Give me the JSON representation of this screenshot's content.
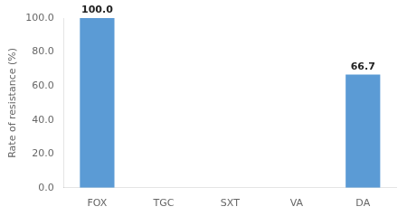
{
  "chart_data": {
    "type": "bar",
    "categories": [
      "FOX",
      "TGC",
      "SXT",
      "VA",
      "DA"
    ],
    "values": [
      100.0,
      0.0,
      0.0,
      0.0,
      66.7
    ],
    "value_labels": [
      "100.0",
      null,
      null,
      null,
      "66.7"
    ],
    "data_labels": true,
    "color": "#5B9BD5",
    "ylabel": "Rate of resistance (%)",
    "ylim": [
      0,
      100
    ],
    "yticks": [
      {
        "value": 0,
        "label": "0.0"
      },
      {
        "value": 20,
        "label": "20.0"
      },
      {
        "value": 40,
        "label": "40.0"
      },
      {
        "value": 60,
        "label": "60.0"
      },
      {
        "value": 80,
        "label": "80.0"
      },
      {
        "value": 100,
        "label": "100.0"
      }
    ],
    "grid": false
  }
}
